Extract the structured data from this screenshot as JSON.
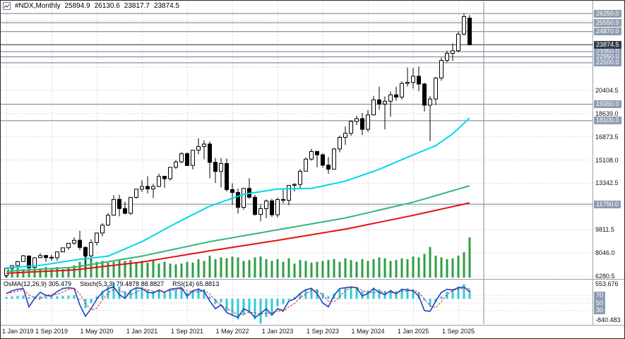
{
  "colors": {
    "up": "#ffffff",
    "down": "#000000",
    "outline": "#000000",
    "ma_fast": "#00d8e8",
    "ma_mid": "#30b878",
    "ma_slow": "#e41010",
    "volume": "#2f9e45",
    "osma_bar": "#32c8dc",
    "stoch_main": "#2040c8",
    "stoch_signal": "#d82020",
    "grid": "#c8c8c8",
    "level_line": "#6f7b8a",
    "tag_bg": "#8e9cb0",
    "tag_current_bg": "#303b4a",
    "separator": "#9aa0a6",
    "text": "#000000"
  },
  "legend": {
    "symbol": "#NDX,Monthly",
    "open": "25894.9",
    "high": "26130.6",
    "low": "23817.7",
    "close": "23874.5"
  },
  "indicator_labels": {
    "osma": "OsMA(12,26,9) 305.479",
    "stoch": "Stoch(5,3,3) 79.4878 88.8827",
    "rsi": "RSI(14) 65.8813"
  },
  "price_axis": {
    "ticks": [
      {
        "value": 20404.5,
        "label": "20404.5"
      },
      {
        "value": 18639.0,
        "label": "18639.0"
      },
      {
        "value": 16873.5,
        "label": "16873.5"
      },
      {
        "value": 15108.0,
        "label": "15108.0"
      },
      {
        "value": 13342.5,
        "label": "13342.5"
      },
      {
        "value": 9811.5,
        "label": "9811.5"
      },
      {
        "value": 8046.0,
        "label": "8046.0"
      },
      {
        "value": 6280.5,
        "label": "6280.5"
      }
    ],
    "level_tags": [
      {
        "value": 26250.0,
        "label": "26250.0"
      },
      {
        "value": 25550.0,
        "label": "25550.0"
      },
      {
        "value": 24870.0,
        "label": "24870.0"
      },
      {
        "value": 23350.0,
        "label": "23350.0"
      },
      {
        "value": 22950.0,
        "label": "22950.0"
      },
      {
        "value": 22500.0,
        "label": "22500.0"
      },
      {
        "value": 19350.0,
        "label": "19350.0"
      },
      {
        "value": 18100.0,
        "label": "18100.0"
      },
      {
        "value": 11750.0,
        "label": "11750.0"
      }
    ],
    "current_tag": {
      "value": 23874.5,
      "label": "23874.5"
    }
  },
  "time_axis": {
    "labels": [
      {
        "index": 0,
        "label": "1 Jan 2019"
      },
      {
        "index": 8,
        "label": "1 Sep 2019"
      },
      {
        "index": 16,
        "label": "1 May 2020"
      },
      {
        "index": 24,
        "label": "1 Jan 2021"
      },
      {
        "index": 32,
        "label": "1 Sep 2021"
      },
      {
        "index": 40,
        "label": "1 May 2022"
      },
      {
        "index": 48,
        "label": "1 Jan 2023"
      },
      {
        "index": 56,
        "label": "1 Sep 2023"
      },
      {
        "index": 64,
        "label": "1 May 2024"
      },
      {
        "index": 72,
        "label": "1 Jan 2025"
      },
      {
        "index": 80,
        "label": "1 Sep 2025"
      }
    ]
  },
  "sub_axis": {
    "max_value": 553.676,
    "max_label": "553.676",
    "min_value": -840.483,
    "min_label": "-840.483",
    "level_tags": [
      {
        "value": 70,
        "label": "70"
      },
      {
        "value": 50,
        "label": "50"
      },
      {
        "value": 30,
        "label": "30"
      }
    ]
  },
  "chart_data": {
    "type": "candlestick",
    "symbol": "#NDX",
    "timeframe": "Monthly",
    "start_month": "Jan 2019",
    "y_range": [
      6170,
      26470
    ],
    "grid_price_values": [
      6280.5,
      8046.0,
      9811.5,
      11577.0,
      13342.5,
      15108.0,
      16873.5,
      18639.0,
      20404.5,
      22170.0,
      23935.5,
      25701.0
    ],
    "horizontal_levels": [
      26250.0,
      25550.0,
      24870.0,
      23350.0,
      22950.0,
      22500.0,
      19350.0,
      18100.0,
      11750.0
    ],
    "current_price": 23874.5,
    "vertical_line_index": 84.5,
    "ohlc": [
      [
        6330,
        6910,
        6165,
        6869
      ],
      [
        6875,
        7115,
        6820,
        7078
      ],
      [
        7080,
        7430,
        6940,
        7378
      ],
      [
        7390,
        7880,
        7380,
        7826
      ],
      [
        7810,
        7850,
        6915,
        6919
      ],
      [
        6950,
        7720,
        6925,
        7671
      ],
      [
        7690,
        8010,
        7640,
        7848
      ],
      [
        7850,
        7890,
        7355,
        7691
      ],
      [
        7710,
        7900,
        7455,
        7679
      ],
      [
        7680,
        8135,
        7425,
        8120
      ],
      [
        8130,
        8445,
        8115,
        8432
      ],
      [
        8440,
        8795,
        8270,
        8778
      ],
      [
        8790,
        9230,
        8670,
        9001
      ],
      [
        9010,
        9736,
        8245,
        8461
      ],
      [
        8460,
        8550,
        6772,
        7813
      ],
      [
        7820,
        9081,
        7490,
        8834
      ],
      [
        8840,
        9598,
        8612,
        9555
      ],
      [
        9560,
        10310,
        9305,
        10156
      ],
      [
        10160,
        11070,
        10095,
        10905
      ],
      [
        10910,
        12439,
        10877,
        12110
      ],
      [
        12120,
        12465,
        10830,
        11418
      ],
      [
        11420,
        11945,
        10980,
        11052
      ],
      [
        11060,
        12285,
        10935,
        12268
      ],
      [
        12270,
        12925,
        12180,
        12888
      ],
      [
        12890,
        13563,
        12680,
        13091
      ],
      [
        13100,
        13879,
        12570,
        12909
      ],
      [
        12910,
        13300,
        12210,
        13092
      ],
      [
        13100,
        14073,
        13050,
        13860
      ],
      [
        13870,
        13899,
        13000,
        13686
      ],
      [
        13690,
        14572,
        13550,
        14555
      ],
      [
        14560,
        15111,
        14425,
        14960
      ],
      [
        14970,
        15702,
        14850,
        15582
      ],
      [
        15590,
        15690,
        14660,
        14689
      ],
      [
        14700,
        15868,
        14385,
        15850
      ],
      [
        15860,
        16765,
        15540,
        16135
      ],
      [
        16140,
        16618,
        15165,
        16320
      ],
      [
        16325,
        16520,
        13725,
        14930
      ],
      [
        14935,
        15265,
        13375,
        14238
      ],
      [
        14240,
        15268,
        13020,
        14838
      ],
      [
        14840,
        15225,
        12710,
        12855
      ],
      [
        12860,
        13330,
        11695,
        12642
      ],
      [
        12645,
        12945,
        11037,
        11504
      ],
      [
        11510,
        12955,
        11330,
        12948
      ],
      [
        12950,
        13720,
        12170,
        12272
      ],
      [
        12275,
        12470,
        10880,
        10971
      ],
      [
        10975,
        11700,
        10440,
        11405
      ],
      [
        11410,
        12110,
        10680,
        11994
      ],
      [
        12000,
        12170,
        10775,
        10940
      ],
      [
        10945,
        12250,
        10740,
        12101
      ],
      [
        12105,
        12850,
        11815,
        12042
      ],
      [
        12045,
        13205,
        11675,
        13181
      ],
      [
        13185,
        13350,
        12725,
        13245
      ],
      [
        13250,
        14415,
        12935,
        14254
      ],
      [
        14260,
        15285,
        14240,
        15179
      ],
      [
        15180,
        15960,
        15055,
        15757
      ],
      [
        15760,
        15800,
        14560,
        15501
      ],
      [
        15505,
        15620,
        14540,
        14715
      ],
      [
        14720,
        15335,
        14060,
        14410
      ],
      [
        14415,
        16025,
        14400,
        15947
      ],
      [
        15950,
        16970,
        15695,
        16826
      ],
      [
        16830,
        17665,
        16250,
        17137
      ],
      [
        17140,
        18120,
        16950,
        18043
      ],
      [
        18045,
        18465,
        17765,
        18255
      ],
      [
        18260,
        18690,
        17010,
        17441
      ],
      [
        17445,
        18910,
        17240,
        18536
      ],
      [
        18540,
        19980,
        18500,
        19683
      ],
      [
        19685,
        20691,
        18935,
        19362
      ],
      [
        19365,
        19940,
        17435,
        19575
      ],
      [
        19580,
        20315,
        18400,
        20060
      ],
      [
        20065,
        20675,
        19620,
        19890
      ],
      [
        19895,
        21100,
        19700,
        20930
      ],
      [
        20935,
        22133,
        20700,
        21012
      ],
      [
        21015,
        22100,
        20540,
        21478
      ],
      [
        21480,
        22223,
        20340,
        20884
      ],
      [
        20890,
        20980,
        18790,
        19278
      ],
      [
        19280,
        19970,
        16542,
        19745
      ],
      [
        19750,
        21425,
        19290,
        21341
      ],
      [
        21345,
        22900,
        21135,
        22679
      ],
      [
        22680,
        23420,
        22530,
        23218
      ],
      [
        23220,
        23970,
        22660,
        23415
      ],
      [
        23420,
        24855,
        23300,
        24680
      ],
      [
        24685,
        26250,
        24575,
        26010
      ],
      [
        25894.9,
        26130.6,
        23817.7,
        23874.5
      ]
    ],
    "volume": [
      22,
      20,
      22,
      19,
      26,
      22,
      21,
      24,
      20,
      24,
      19,
      21,
      28,
      36,
      58,
      42,
      36,
      38,
      34,
      36,
      41,
      38,
      40,
      34,
      38,
      34,
      40,
      32,
      36,
      32,
      30,
      32,
      36,
      34,
      42,
      38,
      50,
      42,
      46,
      44,
      48,
      46,
      38,
      40,
      46,
      48,
      42,
      38,
      42,
      36,
      44,
      32,
      40,
      38,
      34,
      36,
      38,
      40,
      42,
      36,
      44,
      40,
      36,
      42,
      38,
      42,
      46,
      44,
      38,
      40,
      44,
      42,
      48,
      46,
      54,
      70,
      50,
      46,
      42,
      44,
      50,
      58,
      92
    ],
    "moving_averages": [
      {
        "name": "ma-fast-line",
        "color": "#00d8e8",
        "keypoints": [
          [
            0,
            6900
          ],
          [
            6,
            7100
          ],
          [
            12,
            7500
          ],
          [
            18,
            7800
          ],
          [
            24,
            8900
          ],
          [
            30,
            10300
          ],
          [
            36,
            11600
          ],
          [
            42,
            12500
          ],
          [
            48,
            12900
          ],
          [
            54,
            12950
          ],
          [
            60,
            13500
          ],
          [
            66,
            14400
          ],
          [
            72,
            15500
          ],
          [
            76,
            16200
          ],
          [
            79,
            17100
          ],
          [
            82,
            18300
          ]
        ]
      },
      {
        "name": "ma-mid-line",
        "color": "#30b878",
        "keypoints": [
          [
            0,
            6650
          ],
          [
            12,
            6950
          ],
          [
            24,
            7800
          ],
          [
            36,
            8900
          ],
          [
            48,
            9800
          ],
          [
            60,
            10700
          ],
          [
            72,
            11900
          ],
          [
            82,
            13150
          ]
        ]
      },
      {
        "name": "ma-slow-line",
        "color": "#e41010",
        "keypoints": [
          [
            0,
            6500
          ],
          [
            12,
            6750
          ],
          [
            24,
            7350
          ],
          [
            36,
            8200
          ],
          [
            48,
            9000
          ],
          [
            60,
            9850
          ],
          [
            72,
            10900
          ],
          [
            82,
            11850
          ]
        ]
      }
    ],
    "osma": {
      "max": 553.676,
      "min": -840.483,
      "current": 305.479,
      "values": [
        60,
        80,
        95,
        110,
        60,
        80,
        95,
        85,
        70,
        85,
        95,
        110,
        120,
        0,
        -320,
        -150,
        80,
        260,
        420,
        553.676,
        420,
        260,
        300,
        380,
        400,
        310,
        260,
        290,
        250,
        280,
        310,
        360,
        220,
        280,
        360,
        330,
        80,
        -180,
        -120,
        -420,
        -560,
        -700,
        -560,
        -480,
        -700,
        -840.483,
        -620,
        -520,
        -260,
        -180,
        -40,
        60,
        180,
        300,
        380,
        330,
        200,
        90,
        180,
        320,
        380,
        420,
        400,
        260,
        280,
        380,
        330,
        260,
        300,
        260,
        340,
        360,
        320,
        220,
        -60,
        -260,
        -120,
        80,
        240,
        330,
        420,
        500,
        305.479
      ]
    },
    "stoch": {
      "current_main": 79.4878,
      "current_signal": 88.8827,
      "main": [
        75,
        82,
        86,
        88,
        40,
        62,
        78,
        70,
        68,
        80,
        88,
        90,
        88,
        45,
        15,
        35,
        60,
        78,
        88,
        92,
        72,
        62,
        82,
        90,
        88,
        78,
        76,
        84,
        78,
        86,
        88,
        90,
        68,
        82,
        86,
        80,
        55,
        35,
        45,
        25,
        18,
        12,
        35,
        28,
        12,
        22,
        35,
        18,
        35,
        30,
        55,
        60,
        75,
        85,
        88,
        75,
        50,
        40,
        70,
        88,
        90,
        92,
        90,
        68,
        75,
        88,
        78,
        72,
        82,
        74,
        86,
        84,
        82,
        68,
        30,
        28,
        55,
        78,
        86,
        84,
        90,
        92,
        79.4878
      ]
    }
  }
}
